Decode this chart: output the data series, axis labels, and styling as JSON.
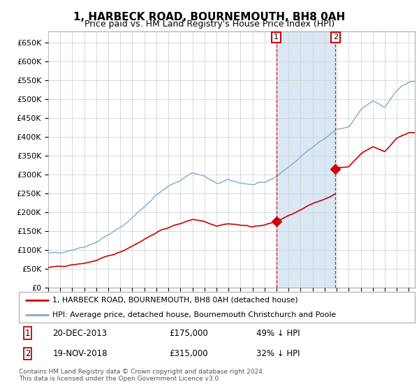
{
  "title": "1, HARBECK ROAD, BOURNEMOUTH, BH8 0AH",
  "subtitle": "Price paid vs. HM Land Registry's House Price Index (HPI)",
  "ylabel_ticks": [
    "£0",
    "£50K",
    "£100K",
    "£150K",
    "£200K",
    "£250K",
    "£300K",
    "£350K",
    "£400K",
    "£450K",
    "£500K",
    "£550K",
    "£600K",
    "£650K"
  ],
  "ytick_values": [
    0,
    50000,
    100000,
    150000,
    200000,
    250000,
    300000,
    350000,
    400000,
    450000,
    500000,
    550000,
    600000,
    650000
  ],
  "ylim": [
    0,
    680000
  ],
  "xlim_start": 1995.0,
  "xlim_end": 2025.5,
  "sale1_date": 2013.97,
  "sale1_price": 175000,
  "sale2_date": 2018.9,
  "sale2_price": 315000,
  "legend_line1": "1, HARBECK ROAD, BOURNEMOUTH, BH8 0AH (detached house)",
  "legend_line2": "HPI: Average price, detached house, Bournemouth Christchurch and Poole",
  "footer": "Contains HM Land Registry data © Crown copyright and database right 2024.\nThis data is licensed under the Open Government Licence v3.0.",
  "hpi_color": "#7aadd4",
  "sale_color": "#cc0000",
  "shade_color": "#dae8f5",
  "plot_bg": "#ffffff",
  "grid_color": "#cccccc",
  "title_fontsize": 11,
  "subtitle_fontsize": 9
}
